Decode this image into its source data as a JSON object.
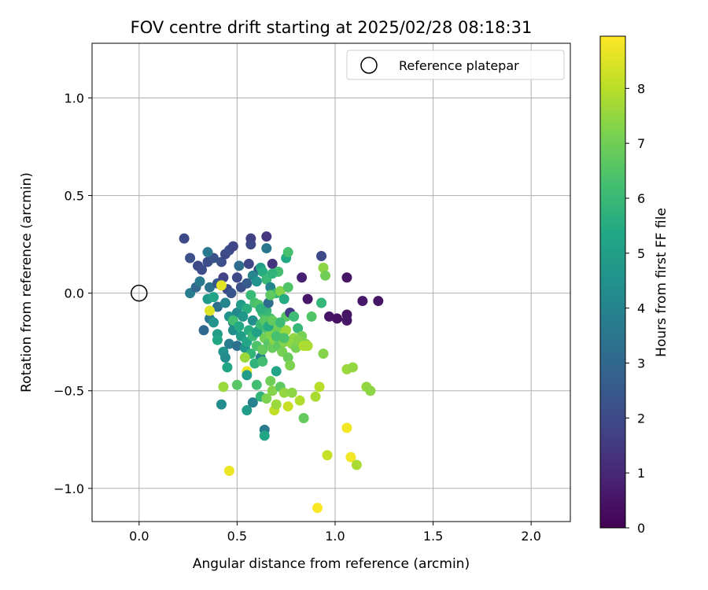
{
  "chart_data": {
    "type": "scatter",
    "title": "FOV centre drift starting at 2025/02/28 08:18:31",
    "xlabel": "Angular distance from reference (arcmin)",
    "ylabel": "Rotation from reference (arcmin)",
    "xlim": [
      -0.24,
      2.2
    ],
    "ylim": [
      -1.17,
      1.28
    ],
    "x_ticks": [
      0.0,
      0.5,
      1.0,
      1.5,
      2.0
    ],
    "x_tick_labels": [
      "0.0",
      "0.5",
      "1.0",
      "1.5",
      "2.0"
    ],
    "y_ticks": [
      -1.0,
      -0.5,
      0.0,
      0.5,
      1.0
    ],
    "y_tick_labels": [
      "−1.0",
      "−0.5",
      "0.0",
      "0.5",
      "1.0"
    ],
    "grid": true,
    "colormap": "viridis",
    "colorbar": {
      "label": "Hours from first FF file",
      "range": [
        0,
        8.95
      ],
      "ticks": [
        0,
        1,
        2,
        3,
        4,
        5,
        6,
        7,
        8
      ],
      "tick_labels": [
        "0",
        "1",
        "2",
        "3",
        "4",
        "5",
        "6",
        "7",
        "8"
      ]
    },
    "legend": {
      "placement": "top-right",
      "entries": [
        {
          "label": "Reference platepar",
          "marker": "open-circle"
        }
      ]
    },
    "reference_point": {
      "x": 0.0,
      "y": 0.0
    },
    "points": [
      [
        0.23,
        0.28,
        2.0
      ],
      [
        0.26,
        0.18,
        2.2
      ],
      [
        0.3,
        0.14,
        2.0
      ],
      [
        0.32,
        0.12,
        2.1
      ],
      [
        0.35,
        0.16,
        2.1
      ],
      [
        0.38,
        0.18,
        2.3
      ],
      [
        0.42,
        0.16,
        2.2
      ],
      [
        0.44,
        0.2,
        2.0
      ],
      [
        0.46,
        0.22,
        2.1
      ],
      [
        0.48,
        0.24,
        1.9
      ],
      [
        0.51,
        0.14,
        3.2
      ],
      [
        0.56,
        0.15,
        1.9
      ],
      [
        0.57,
        0.28,
        1.7
      ],
      [
        0.57,
        0.25,
        2.0
      ],
      [
        0.61,
        0.12,
        2.0
      ],
      [
        0.65,
        0.29,
        1.4
      ],
      [
        0.65,
        0.23,
        3.5
      ],
      [
        0.68,
        0.15,
        1.3
      ],
      [
        0.75,
        0.18,
        5.4
      ],
      [
        0.76,
        0.21,
        6.3
      ],
      [
        0.93,
        0.19,
        2.0
      ],
      [
        0.35,
        0.21,
        3.6
      ],
      [
        0.26,
        0.0,
        3.8
      ],
      [
        0.29,
        0.03,
        3.0
      ],
      [
        0.31,
        0.06,
        3.6
      ],
      [
        0.36,
        0.03,
        3.4
      ],
      [
        0.4,
        0.05,
        2.5
      ],
      [
        0.43,
        0.08,
        1.8
      ],
      [
        0.45,
        0.02,
        2.0
      ],
      [
        0.47,
        0.0,
        2.4
      ],
      [
        0.5,
        0.08,
        2.0
      ],
      [
        0.52,
        0.03,
        2.2
      ],
      [
        0.55,
        0.05,
        2.6
      ],
      [
        0.58,
        0.09,
        4.0
      ],
      [
        0.6,
        0.06,
        4.5
      ],
      [
        0.62,
        0.13,
        5.0
      ],
      [
        0.63,
        0.11,
        5.5
      ],
      [
        0.65,
        0.07,
        6.0
      ],
      [
        0.67,
        0.03,
        4.0
      ],
      [
        0.7,
        0.0,
        5.8
      ],
      [
        0.72,
        0.01,
        7.3
      ],
      [
        0.74,
        -0.03,
        5.5
      ],
      [
        0.76,
        0.03,
        6.5
      ],
      [
        0.71,
        0.11,
        6.2
      ],
      [
        0.68,
        0.1,
        5.8
      ],
      [
        0.83,
        0.08,
        0.8
      ],
      [
        0.86,
        -0.03,
        0.6
      ],
      [
        0.93,
        -0.05,
        5.8
      ],
      [
        0.94,
        0.13,
        7.4
      ],
      [
        0.95,
        0.09,
        7.0
      ],
      [
        0.93,
        -0.05,
        5.9
      ],
      [
        1.06,
        0.08,
        0.5
      ],
      [
        0.35,
        -0.03,
        4.8
      ],
      [
        0.38,
        -0.02,
        5.2
      ],
      [
        0.4,
        -0.07,
        3.3
      ],
      [
        0.44,
        -0.05,
        4.1
      ],
      [
        0.46,
        -0.12,
        4.5
      ],
      [
        0.48,
        -0.15,
        3.8
      ],
      [
        0.5,
        -0.1,
        4.2
      ],
      [
        0.52,
        -0.06,
        4.9
      ],
      [
        0.55,
        -0.08,
        5.6
      ],
      [
        0.57,
        -0.01,
        6.0
      ],
      [
        0.59,
        -0.05,
        6.3
      ],
      [
        0.61,
        -0.06,
        6.5
      ],
      [
        0.63,
        -0.1,
        6.1
      ],
      [
        0.65,
        -0.09,
        5.9
      ],
      [
        0.67,
        -0.13,
        6.2
      ],
      [
        0.69,
        -0.15,
        5.7
      ],
      [
        0.71,
        -0.17,
        6.0
      ],
      [
        0.73,
        -0.2,
        6.1
      ],
      [
        0.75,
        -0.12,
        6.6
      ],
      [
        0.77,
        -0.1,
        1.6
      ],
      [
        0.79,
        -0.12,
        6.1
      ],
      [
        0.81,
        -0.18,
        5.9
      ],
      [
        0.83,
        -0.22,
        7.1
      ],
      [
        0.85,
        -0.26,
        7.3
      ],
      [
        0.88,
        -0.12,
        6.5
      ],
      [
        0.97,
        -0.12,
        0.5
      ],
      [
        1.01,
        -0.13,
        0.4
      ],
      [
        1.06,
        -0.14,
        0.6
      ],
      [
        1.06,
        -0.11,
        0.5
      ],
      [
        1.14,
        -0.04,
        0.6
      ],
      [
        1.22,
        -0.04,
        0.5
      ],
      [
        0.33,
        -0.19,
        3.0
      ],
      [
        0.36,
        -0.13,
        3.6
      ],
      [
        0.38,
        -0.15,
        4.5
      ],
      [
        0.4,
        -0.21,
        5.0
      ],
      [
        0.4,
        -0.24,
        5.3
      ],
      [
        0.43,
        -0.3,
        4.6
      ],
      [
        0.44,
        -0.33,
        4.3
      ],
      [
        0.45,
        -0.38,
        5.2
      ],
      [
        0.46,
        -0.26,
        3.8
      ],
      [
        0.48,
        -0.19,
        4.4
      ],
      [
        0.5,
        -0.27,
        3.3
      ],
      [
        0.52,
        -0.22,
        4.9
      ],
      [
        0.54,
        -0.28,
        4.6
      ],
      [
        0.55,
        -0.25,
        5.3
      ],
      [
        0.56,
        -0.19,
        5.6
      ],
      [
        0.57,
        -0.31,
        5.8
      ],
      [
        0.58,
        -0.22,
        6.0
      ],
      [
        0.6,
        -0.27,
        6.4
      ],
      [
        0.61,
        -0.19,
        6.2
      ],
      [
        0.62,
        -0.33,
        3.9
      ],
      [
        0.63,
        -0.29,
        6.8
      ],
      [
        0.64,
        -0.23,
        7.0
      ],
      [
        0.65,
        -0.18,
        6.3
      ],
      [
        0.66,
        -0.26,
        6.6
      ],
      [
        0.67,
        -0.21,
        7.2
      ],
      [
        0.68,
        -0.28,
        6.9
      ],
      [
        0.69,
        -0.24,
        7.4
      ],
      [
        0.7,
        -0.18,
        7.0
      ],
      [
        0.71,
        -0.27,
        6.7
      ],
      [
        0.72,
        -0.22,
        7.5
      ],
      [
        0.73,
        -0.3,
        7.1
      ],
      [
        0.74,
        -0.25,
        7.3
      ],
      [
        0.75,
        -0.19,
        7.6
      ],
      [
        0.76,
        -0.33,
        6.9
      ],
      [
        0.77,
        -0.37,
        7.2
      ],
      [
        0.78,
        -0.26,
        7.4
      ],
      [
        0.79,
        -0.23,
        7.5
      ],
      [
        0.8,
        -0.28,
        7.1
      ],
      [
        0.81,
        -0.24,
        7.3
      ],
      [
        0.84,
        -0.27,
        7.9
      ],
      [
        0.86,
        -0.27,
        7.8
      ],
      [
        0.94,
        -0.31,
        7.3
      ],
      [
        0.54,
        -0.33,
        7.6
      ],
      [
        0.55,
        -0.4,
        8.7
      ],
      [
        0.55,
        -0.42,
        4.9
      ],
      [
        0.59,
        -0.36,
        5.8
      ],
      [
        0.63,
        -0.35,
        6.2
      ],
      [
        0.7,
        -0.4,
        5.2
      ],
      [
        0.43,
        -0.48,
        7.6
      ],
      [
        0.5,
        -0.47,
        6.6
      ],
      [
        0.6,
        -0.47,
        6.2
      ],
      [
        0.62,
        -0.53,
        5.8
      ],
      [
        0.65,
        -0.54,
        7.2
      ],
      [
        0.67,
        -0.45,
        7.0
      ],
      [
        0.68,
        -0.5,
        7.3
      ],
      [
        0.69,
        -0.6,
        8.1
      ],
      [
        0.7,
        -0.57,
        7.6
      ],
      [
        0.72,
        -0.48,
        6.7
      ],
      [
        0.74,
        -0.51,
        7.5
      ],
      [
        0.76,
        -0.58,
        8.2
      ],
      [
        0.78,
        -0.51,
        7.4
      ],
      [
        0.82,
        -0.55,
        7.9
      ],
      [
        0.84,
        -0.64,
        6.8
      ],
      [
        0.9,
        -0.53,
        7.8
      ],
      [
        0.92,
        -0.48,
        8.0
      ],
      [
        0.42,
        -0.57,
        4.3
      ],
      [
        0.55,
        -0.6,
        4.9
      ],
      [
        0.58,
        -0.56,
        3.9
      ],
      [
        0.64,
        -0.7,
        3.7
      ],
      [
        0.64,
        -0.73,
        5.2
      ],
      [
        1.06,
        -0.39,
        7.6
      ],
      [
        1.09,
        -0.38,
        7.5
      ],
      [
        1.16,
        -0.48,
        7.5
      ],
      [
        1.18,
        -0.5,
        7.4
      ],
      [
        0.96,
        -0.83,
        8.2
      ],
      [
        1.06,
        -0.69,
        8.8
      ],
      [
        1.08,
        -0.84,
        8.8
      ],
      [
        1.11,
        -0.88,
        7.8
      ],
      [
        0.91,
        -1.1,
        8.9
      ],
      [
        0.46,
        -0.91,
        8.7
      ],
      [
        0.42,
        0.04,
        8.6
      ],
      [
        0.36,
        -0.09,
        8.5
      ],
      [
        0.48,
        -0.14,
        6.2
      ],
      [
        0.51,
        -0.17,
        5.4
      ],
      [
        0.53,
        -0.12,
        4.7
      ],
      [
        0.58,
        -0.14,
        4.4
      ],
      [
        0.6,
        -0.2,
        5.1
      ],
      [
        0.62,
        -0.16,
        6.0
      ],
      [
        0.64,
        -0.14,
        6.6
      ],
      [
        0.66,
        -0.17,
        5.5
      ],
      [
        0.68,
        -0.14,
        6.8
      ],
      [
        0.7,
        -0.22,
        6.3
      ],
      [
        0.72,
        -0.15,
        6.1
      ],
      [
        0.74,
        -0.23,
        6.4
      ],
      [
        0.66,
        -0.05,
        3.2
      ],
      [
        0.67,
        -0.01,
        6.7
      ],
      [
        0.62,
        -0.08,
        5.7
      ]
    ]
  }
}
